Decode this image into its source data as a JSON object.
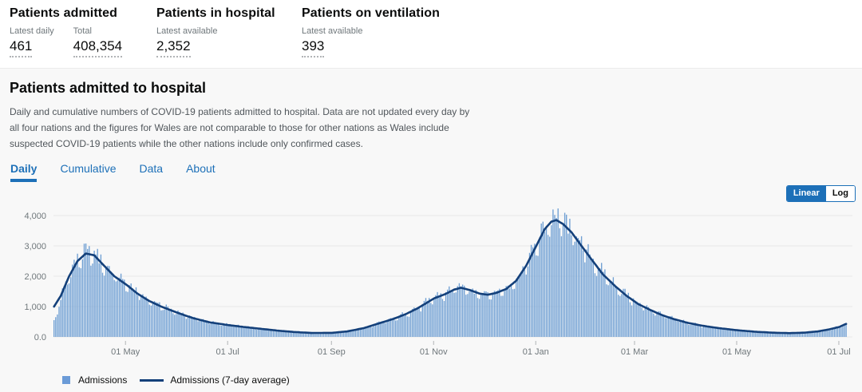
{
  "header_stats": {
    "groups": [
      {
        "title": "Patients admitted",
        "stats": [
          {
            "label": "Latest daily",
            "value": "461"
          },
          {
            "label": "Total",
            "value": "408,354"
          }
        ]
      },
      {
        "title": "Patients in hospital",
        "stats": [
          {
            "label": "Latest available",
            "value": "2,352"
          }
        ]
      },
      {
        "title": "Patients on ventilation",
        "stats": [
          {
            "label": "Latest available",
            "value": "393"
          }
        ]
      }
    ]
  },
  "section": {
    "title": "Patients admitted to hospital",
    "description_lines": [
      "Daily and cumulative numbers of COVID-19 patients admitted to hospital. Data are not updated every day by",
      "all four nations and the figures for Wales are not comparable to those for other nations as Wales include",
      "suspected COVID-19 patients while the other nations include only confirmed cases."
    ],
    "tabs": [
      {
        "label": "Daily"
      },
      {
        "label": "Cumulative"
      },
      {
        "label": "Data"
      },
      {
        "label": "About"
      }
    ],
    "scale_toggle": {
      "selected": "Linear",
      "options": [
        "Linear",
        "Log"
      ]
    }
  },
  "legend": {
    "items": [
      {
        "label": "Admissions",
        "swatch": "square"
      },
      {
        "label": "Admissions (7-day average)",
        "swatch": "line"
      }
    ]
  },
  "colors": {
    "accent": "#1d70b8",
    "bar": "#6f9fd3",
    "line": "#14407a",
    "panel": "#f8f8f8",
    "grid": "#e9e9e9",
    "tick": "#b1b4b6",
    "muted_text": "#6f777b"
  },
  "chart_data": {
    "type": "bar",
    "title": "",
    "xlabel": "",
    "ylabel": "",
    "ylim": [
      0,
      4000
    ],
    "grid": true,
    "legend_position": "bottom",
    "start_date": "2020-03-19",
    "end_date": "2021-07-05",
    "y_ticks": [
      {
        "value": 0,
        "label": "0.0"
      },
      {
        "value": 1000,
        "label": "1,000"
      },
      {
        "value": 2000,
        "label": "2,000"
      },
      {
        "value": 3000,
        "label": "3,000"
      },
      {
        "value": 4000,
        "label": "4,000"
      }
    ],
    "x_ticks": [
      {
        "date": "2020-05-01",
        "label": "01 May"
      },
      {
        "date": "2020-07-01",
        "label": "01 Jul"
      },
      {
        "date": "2020-09-01",
        "label": "01 Sep"
      },
      {
        "date": "2020-11-01",
        "label": "01 Nov"
      },
      {
        "date": "2021-01-01",
        "label": "01 Jan"
      },
      {
        "date": "2021-03-01",
        "label": "01 Mar"
      },
      {
        "date": "2021-05-01",
        "label": "01 May"
      },
      {
        "date": "2021-07-01",
        "label": "01 Jul"
      }
    ],
    "series": [
      {
        "name": "Admissions",
        "type": "bar"
      },
      {
        "name": "Admissions (7-day average)",
        "type": "line"
      }
    ],
    "avg_keypoints": [
      [
        "2020-03-19",
        1000
      ],
      [
        "2020-03-23",
        1350
      ],
      [
        "2020-03-28",
        2000
      ],
      [
        "2020-04-02",
        2500
      ],
      [
        "2020-04-07",
        2750
      ],
      [
        "2020-04-12",
        2690
      ],
      [
        "2020-04-17",
        2400
      ],
      [
        "2020-04-24",
        2000
      ],
      [
        "2020-05-01",
        1730
      ],
      [
        "2020-05-08",
        1420
      ],
      [
        "2020-05-15",
        1180
      ],
      [
        "2020-05-22",
        1000
      ],
      [
        "2020-06-01",
        790
      ],
      [
        "2020-06-10",
        620
      ],
      [
        "2020-06-20",
        480
      ],
      [
        "2020-07-01",
        390
      ],
      [
        "2020-07-10",
        330
      ],
      [
        "2020-07-20",
        270
      ],
      [
        "2020-08-01",
        200
      ],
      [
        "2020-08-10",
        160
      ],
      [
        "2020-08-20",
        130
      ],
      [
        "2020-09-01",
        135
      ],
      [
        "2020-09-10",
        180
      ],
      [
        "2020-09-20",
        290
      ],
      [
        "2020-10-01",
        480
      ],
      [
        "2020-10-08",
        600
      ],
      [
        "2020-10-15",
        750
      ],
      [
        "2020-10-22",
        940
      ],
      [
        "2020-11-01",
        1270
      ],
      [
        "2020-11-08",
        1420
      ],
      [
        "2020-11-13",
        1560
      ],
      [
        "2020-11-17",
        1620
      ],
      [
        "2020-11-22",
        1550
      ],
      [
        "2020-11-28",
        1430
      ],
      [
        "2020-12-03",
        1390
      ],
      [
        "2020-12-08",
        1450
      ],
      [
        "2020-12-14",
        1580
      ],
      [
        "2020-12-20",
        1850
      ],
      [
        "2020-12-26",
        2350
      ],
      [
        "2021-01-01",
        3000
      ],
      [
        "2021-01-06",
        3550
      ],
      [
        "2021-01-10",
        3800
      ],
      [
        "2021-01-13",
        3850
      ],
      [
        "2021-01-17",
        3720
      ],
      [
        "2021-01-22",
        3450
      ],
      [
        "2021-01-28",
        3000
      ],
      [
        "2021-02-03",
        2550
      ],
      [
        "2021-02-10",
        2050
      ],
      [
        "2021-02-17",
        1680
      ],
      [
        "2021-02-24",
        1350
      ],
      [
        "2021-03-03",
        1080
      ],
      [
        "2021-03-10",
        890
      ],
      [
        "2021-03-17",
        720
      ],
      [
        "2021-03-24",
        590
      ],
      [
        "2021-04-01",
        470
      ],
      [
        "2021-04-10",
        370
      ],
      [
        "2021-04-20",
        290
      ],
      [
        "2021-05-01",
        220
      ],
      [
        "2021-05-12",
        170
      ],
      [
        "2021-05-22",
        140
      ],
      [
        "2021-06-01",
        125
      ],
      [
        "2021-06-10",
        140
      ],
      [
        "2021-06-18",
        180
      ],
      [
        "2021-06-25",
        250
      ],
      [
        "2021-07-01",
        330
      ],
      [
        "2021-07-05",
        430
      ]
    ]
  }
}
